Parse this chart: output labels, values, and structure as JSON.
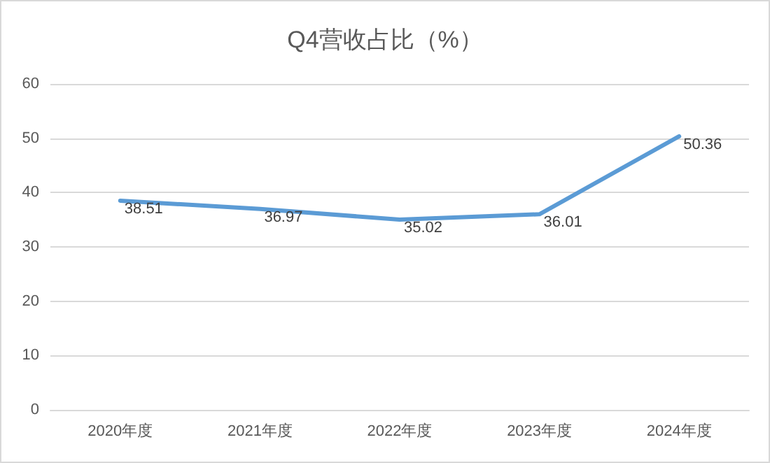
{
  "chart_data": {
    "type": "line",
    "title": "Q4营收占比（%）",
    "categories": [
      "2020年度",
      "2021年度",
      "2022年度",
      "2023年度",
      "2024年度"
    ],
    "series": [
      {
        "color": "#5b9bd5",
        "values": [
          38.51,
          36.97,
          35.02,
          36.01,
          50.36
        ]
      }
    ],
    "ylim": [
      0,
      60
    ],
    "yticks": [
      0,
      10,
      20,
      30,
      40,
      50,
      60
    ],
    "grid": "y",
    "data_labels": true,
    "marker": "none",
    "line_style": "solid"
  }
}
